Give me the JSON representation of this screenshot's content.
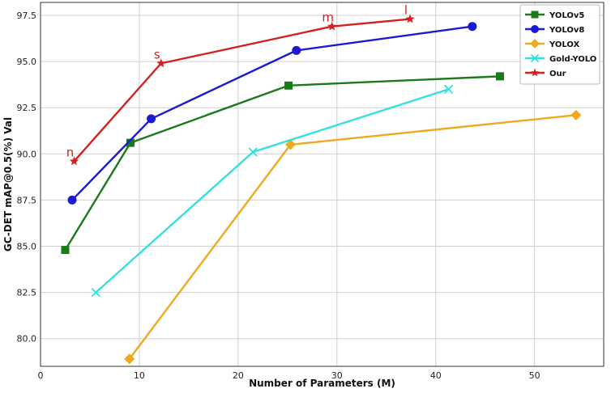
{
  "chart_data": {
    "type": "line",
    "xlabel": "Number of Parameters (M)",
    "ylabel": "GC-DET mAP@0.5(%) Val",
    "xlim": [
      0,
      57
    ],
    "ylim": [
      78.5,
      98.2
    ],
    "xticks": [
      0,
      10,
      20,
      30,
      40,
      50
    ],
    "yticks": [
      80.0,
      82.5,
      85.0,
      87.5,
      90.0,
      92.5,
      95.0,
      97.5
    ],
    "grid": true,
    "legend_position": "top-right",
    "series": [
      {
        "name": "YOLOv5",
        "color": "#1a7a1a",
        "marker": "square",
        "x": [
          2.5,
          9.1,
          25.1,
          46.5
        ],
        "y": [
          84.8,
          90.6,
          93.7,
          94.2
        ]
      },
      {
        "name": "YOLOv8",
        "color": "#1a1ad4",
        "marker": "circle",
        "x": [
          3.2,
          11.2,
          25.9,
          43.7
        ],
        "y": [
          87.5,
          91.9,
          95.6,
          96.9
        ]
      },
      {
        "name": "YOLOX",
        "color": "#f0a820",
        "marker": "diamond",
        "x": [
          9.0,
          25.3,
          54.2
        ],
        "y": [
          78.9,
          90.5,
          92.1
        ]
      },
      {
        "name": "Gold-YOLO",
        "color": "#33e0e0",
        "marker": "x",
        "x": [
          5.6,
          21.5,
          41.3
        ],
        "y": [
          82.5,
          90.1,
          93.5
        ]
      },
      {
        "name": "Our",
        "color": "#d42020",
        "marker": "star",
        "x": [
          3.4,
          12.2,
          29.5,
          37.4
        ],
        "y": [
          89.6,
          94.9,
          96.9,
          97.3
        ],
        "point_labels": [
          "n",
          "s",
          "m",
          "l"
        ]
      }
    ]
  }
}
